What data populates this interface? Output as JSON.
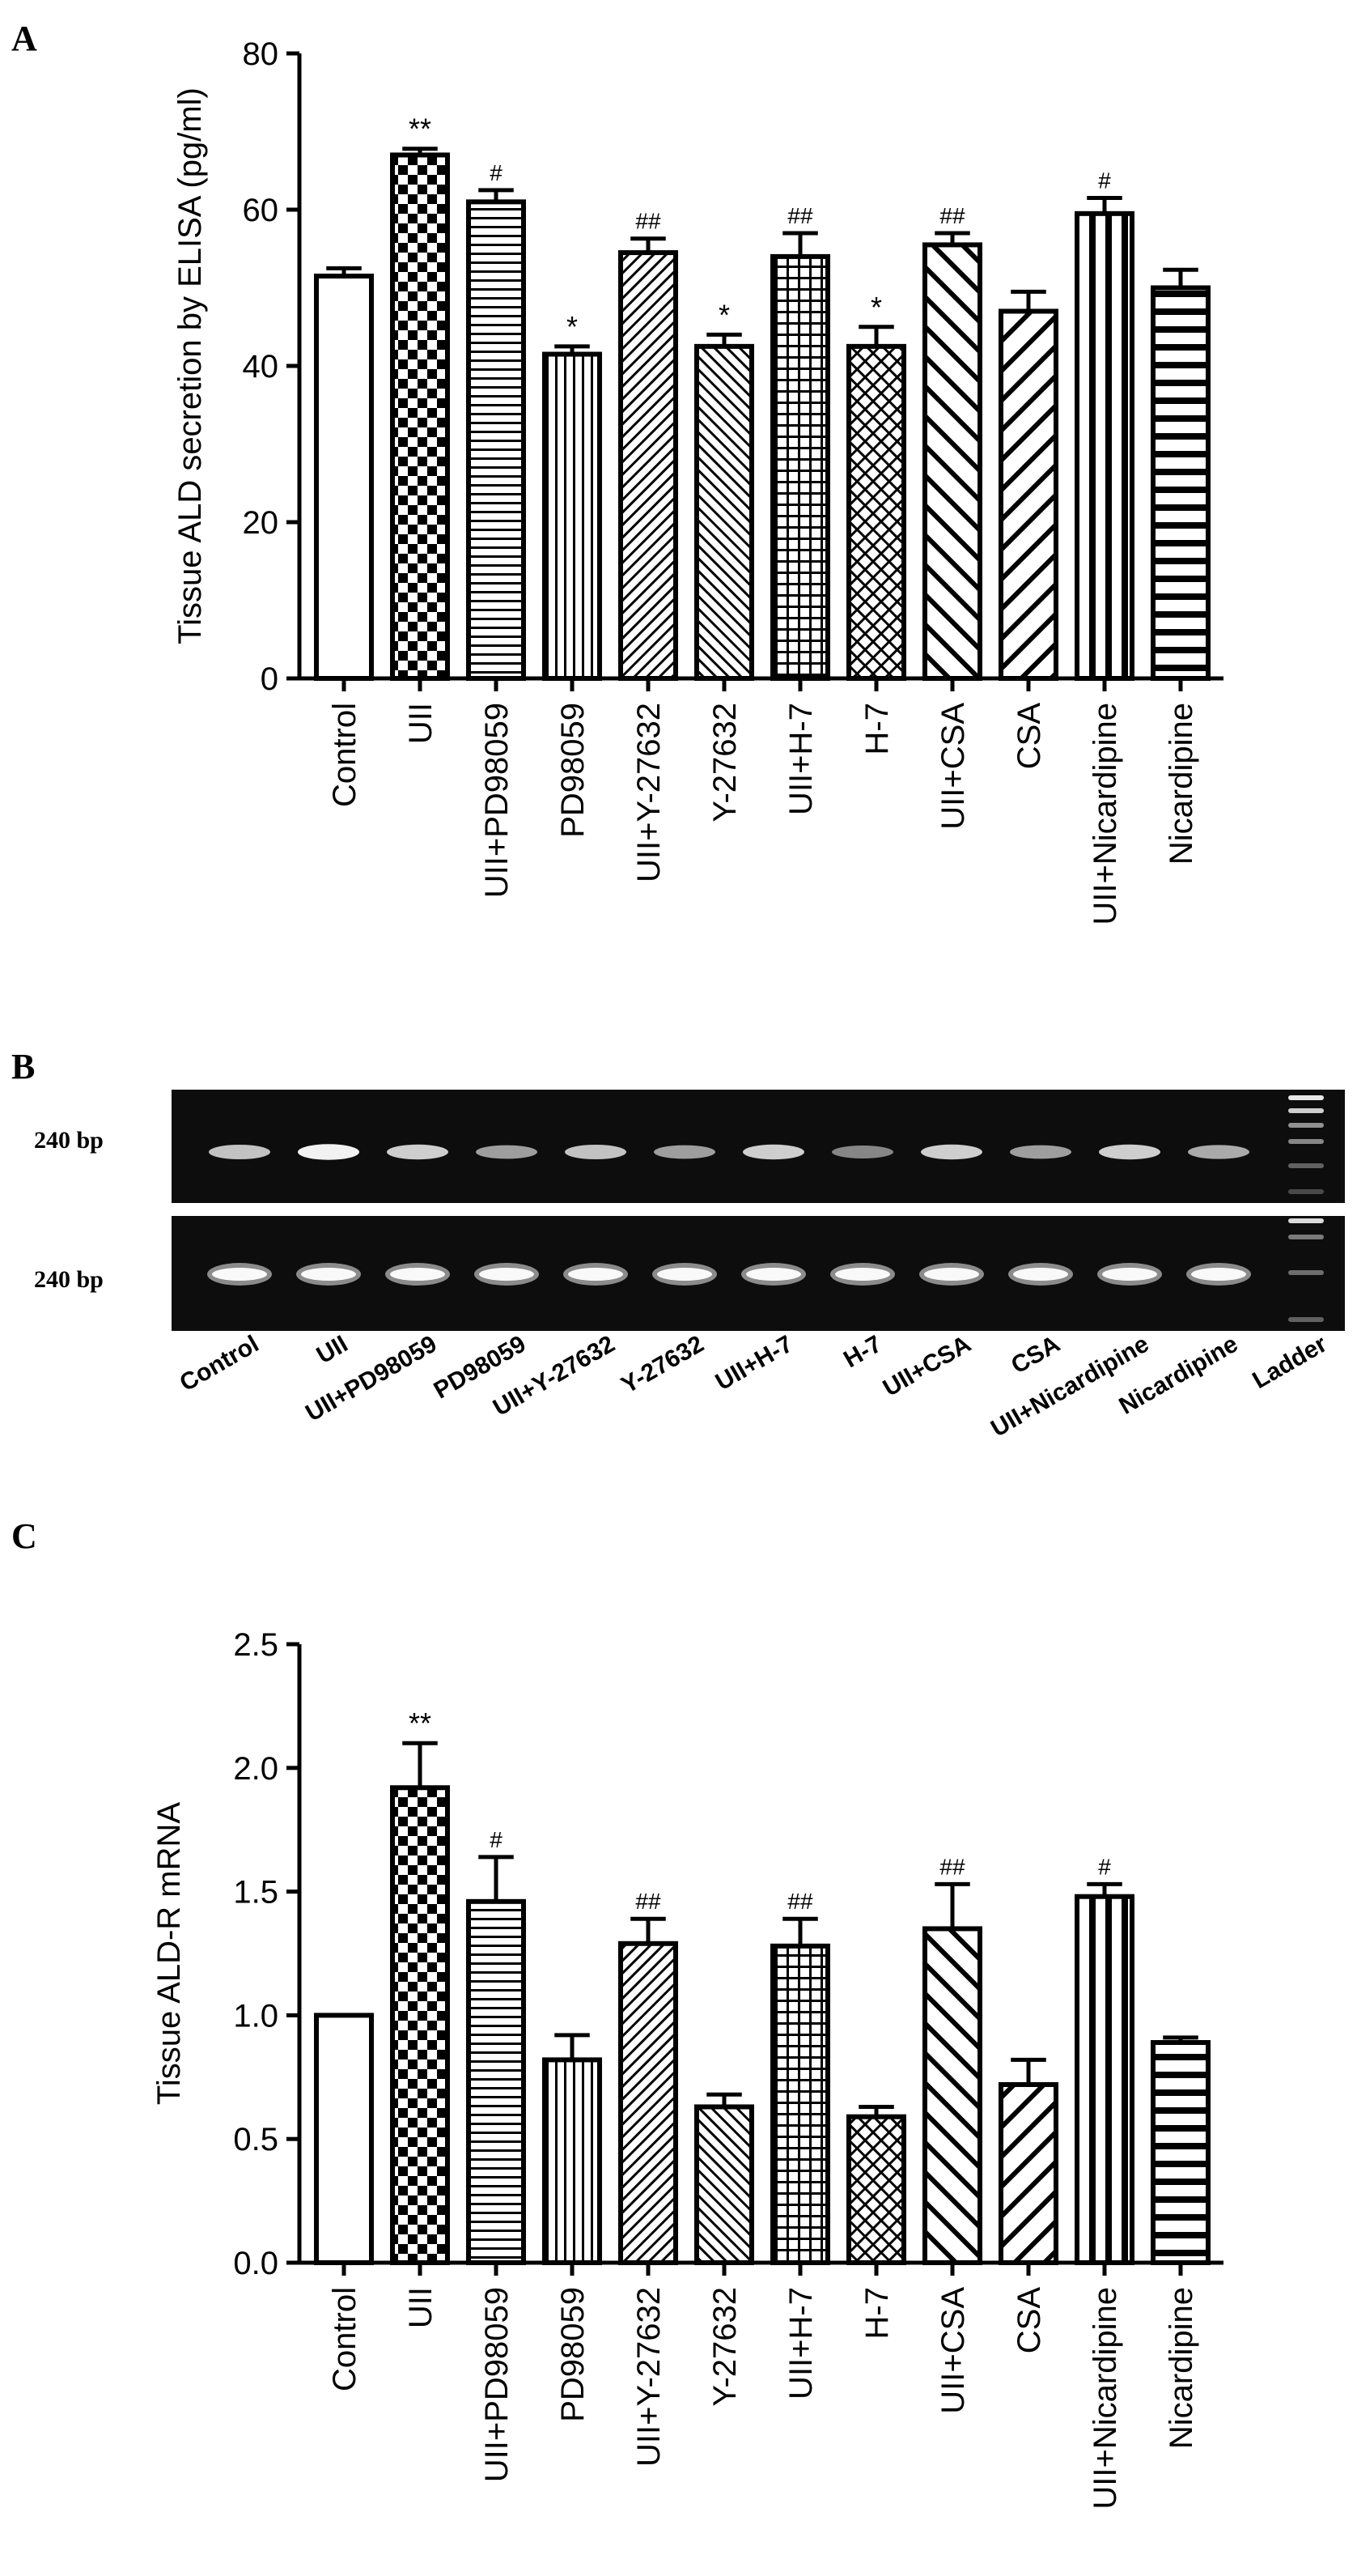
{
  "panels": {
    "a": {
      "letter": "A"
    },
    "b": {
      "letter": "B"
    },
    "c": {
      "letter": "C"
    }
  },
  "categories": [
    "Control",
    "UII",
    "UII+PD98059",
    "PD98059",
    "UII+Y-27632",
    "Y-27632",
    "UII+H-7",
    "H-7",
    "UII+CSA",
    "CSA",
    "UII+Nicardipine",
    "Nicardipine"
  ],
  "gel": {
    "marker_label_top": "240 bp",
    "marker_label_bottom": "240 bp",
    "lanes": [
      "Control",
      "UII",
      "UII+PD98059",
      "PD98059",
      "UII+Y-27632",
      "Y-27632",
      "UII+H-7",
      "H-7",
      "UII+CSA",
      "CSA",
      "UII+Nicardipine",
      "Nicardipine",
      "Ladder"
    ],
    "top_band_intensity": [
      0.75,
      0.95,
      0.8,
      0.6,
      0.75,
      0.6,
      0.8,
      0.5,
      0.8,
      0.6,
      0.8,
      0.65
    ],
    "bottom_band_intensity": [
      0.95,
      0.95,
      0.95,
      0.95,
      0.95,
      0.95,
      0.95,
      0.95,
      0.95,
      0.95,
      0.95,
      0.95
    ]
  },
  "chart_data": [
    {
      "type": "bar",
      "ylabel": "Tissue ALD secretion by ELISA (pg/ml)",
      "ylim": [
        0,
        80
      ],
      "yticks": [
        "0",
        "20",
        "40",
        "60",
        "80"
      ],
      "categories": [
        "Control",
        "UII",
        "UII+PD98059",
        "PD98059",
        "UII+Y-27632",
        "Y-27632",
        "UII+H-7",
        "H-7",
        "UII+CSA",
        "CSA",
        "UII+Nicardipine",
        "Nicardipine"
      ],
      "values": [
        51.5,
        67,
        61,
        41.5,
        54.5,
        42.5,
        54,
        42.5,
        55.5,
        47,
        59.5,
        50
      ],
      "errors": [
        1,
        0.8,
        1.5,
        1,
        1.8,
        1.5,
        3,
        2.5,
        1.5,
        2.5,
        2,
        2.3
      ],
      "annotations": [
        "",
        "**",
        "#",
        "*",
        "##",
        "*",
        "##",
        "*",
        "##",
        "",
        "#",
        ""
      ],
      "patterns": [
        "none",
        "checker",
        "hlines",
        "vlines",
        "diag-right-dense",
        "diag-left-dense",
        "grid",
        "crosshatch",
        "diag-left-wide",
        "diag-right-wide",
        "vlines-thick",
        "hlines-thick"
      ]
    },
    {
      "type": "bar",
      "ylabel": "Tissue ALD-R mRNA",
      "ylim": [
        0,
        2.5
      ],
      "yticks": [
        "0.0",
        "0.5",
        "1.0",
        "1.5",
        "2.0",
        "2.5"
      ],
      "categories": [
        "Control",
        "UII",
        "UII+PD98059",
        "PD98059",
        "UII+Y-27632",
        "Y-27632",
        "UII+H-7",
        "H-7",
        "UII+CSA",
        "CSA",
        "UII+Nicardipine",
        "Nicardipine"
      ],
      "values": [
        1.0,
        1.92,
        1.46,
        0.82,
        1.29,
        0.63,
        1.28,
        0.59,
        1.35,
        0.72,
        1.48,
        0.89
      ],
      "errors": [
        0,
        0.18,
        0.18,
        0.1,
        0.1,
        0.05,
        0.11,
        0.04,
        0.18,
        0.1,
        0.05,
        0.02
      ],
      "annotations": [
        "",
        "**",
        "#",
        "",
        "##",
        "",
        "##",
        "",
        "##",
        "",
        "#",
        ""
      ],
      "patterns": [
        "none",
        "checker",
        "hlines",
        "vlines",
        "diag-right-dense",
        "diag-left-dense",
        "grid",
        "crosshatch",
        "diag-left-wide",
        "diag-right-wide",
        "vlines-thick",
        "hlines-thick"
      ]
    }
  ]
}
